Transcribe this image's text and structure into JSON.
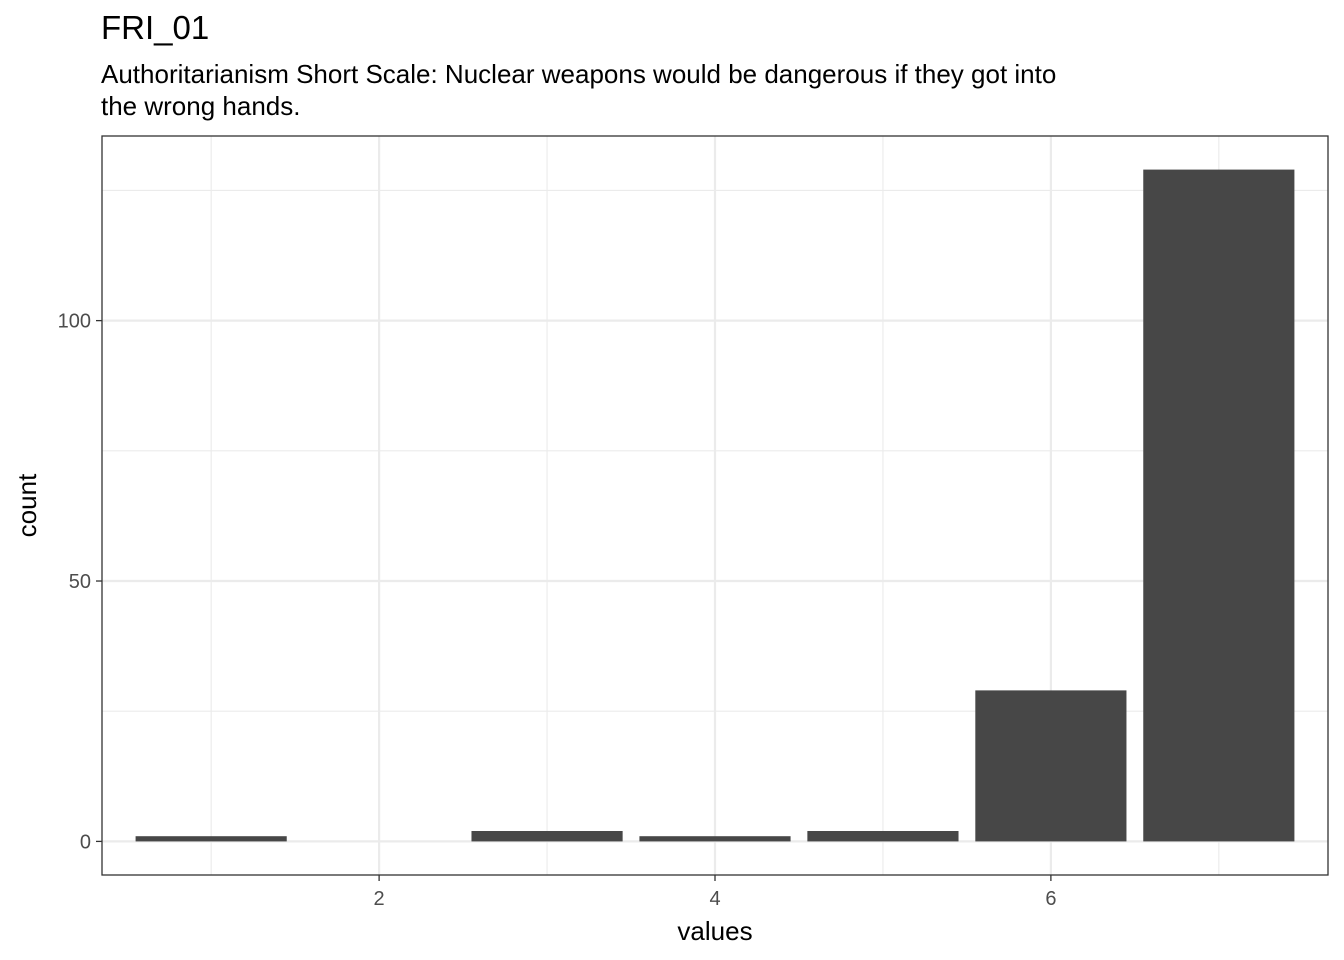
{
  "chart_data": {
    "type": "bar",
    "title": "FRI_01",
    "subtitle": "Authoritarianism Short Scale: Nuclear weapons would be dangerous if they got into the wrong hands.",
    "xlabel": "values",
    "ylabel": "count",
    "x": [
      1,
      2,
      3,
      4,
      5,
      6,
      7
    ],
    "values": [
      1,
      0,
      2,
      1,
      2,
      29,
      129
    ],
    "xlim": [
      0.35,
      7.65
    ],
    "ylim": [
      -6.45,
      135.45
    ],
    "xticks": [
      2,
      4,
      6
    ],
    "yticks": [
      0,
      50,
      100
    ],
    "grid": true,
    "bar_color": "#474747",
    "panel_border_color": "#333333",
    "grid_color": "#ebebeb"
  }
}
